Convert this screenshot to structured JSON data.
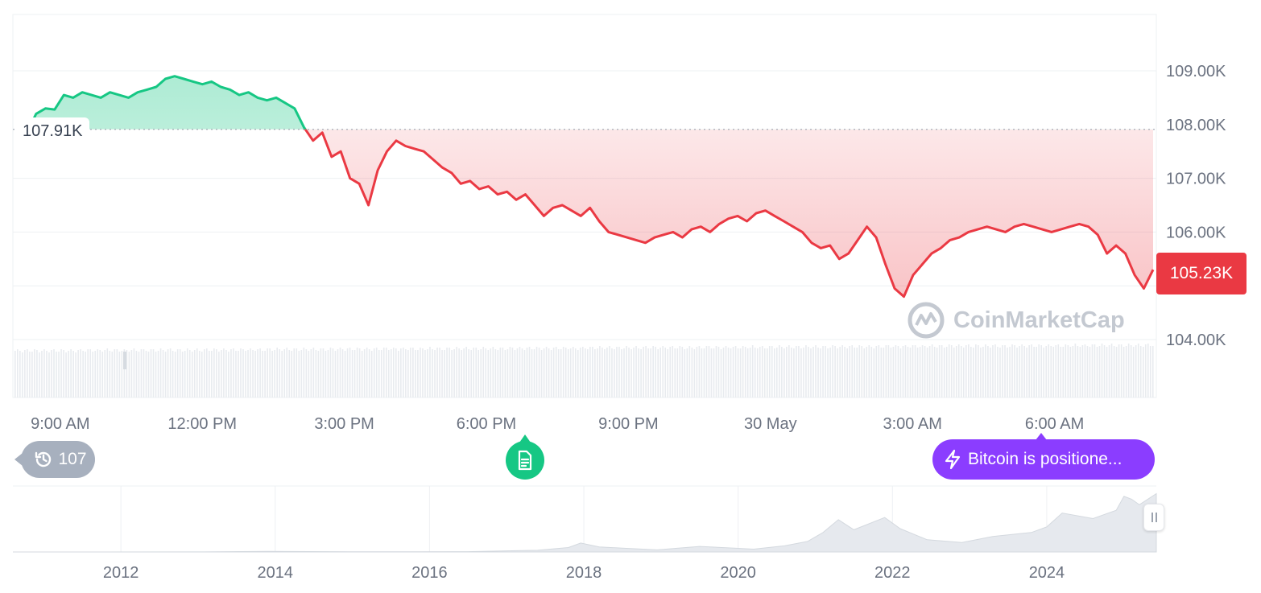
{
  "chart_data": {
    "type": "area",
    "baseline": 107.91,
    "baseline_label": "107.91K",
    "current_value": 105.23,
    "current_label": "105.23K",
    "y_ticks": [
      "104.00K",
      "105.00K",
      "106.00K",
      "107.00K",
      "108.00K",
      "109.00K"
    ],
    "y_tick_values": [
      104,
      105,
      106,
      107,
      108,
      109
    ],
    "x_ticks": [
      "9:00 AM",
      "12:00 PM",
      "3:00 PM",
      "6:00 PM",
      "9:00 PM",
      "30 May",
      "3:00 AM",
      "6:00 AM"
    ],
    "x_tick_hours": [
      1,
      4,
      7,
      10,
      13,
      16,
      19,
      22
    ],
    "x_start_hours": 0.0,
    "x_end_hours": 24.15,
    "ylim": [
      103.5,
      109.7
    ],
    "values": [
      107.9,
      107.85,
      108.2,
      108.3,
      108.28,
      108.55,
      108.5,
      108.6,
      108.55,
      108.5,
      108.6,
      108.55,
      108.5,
      108.6,
      108.65,
      108.7,
      108.85,
      108.9,
      108.85,
      108.8,
      108.75,
      108.8,
      108.7,
      108.65,
      108.55,
      108.6,
      108.5,
      108.45,
      108.5,
      108.4,
      108.3,
      107.95,
      107.7,
      107.85,
      107.4,
      107.5,
      107.0,
      106.9,
      106.5,
      107.15,
      107.5,
      107.7,
      107.6,
      107.55,
      107.5,
      107.35,
      107.2,
      107.1,
      106.9,
      106.95,
      106.8,
      106.85,
      106.7,
      106.75,
      106.6,
      106.7,
      106.5,
      106.3,
      106.45,
      106.5,
      106.4,
      106.3,
      106.45,
      106.2,
      106.0,
      105.95,
      105.9,
      105.85,
      105.8,
      105.9,
      105.95,
      106.0,
      105.9,
      106.05,
      106.1,
      106.0,
      106.15,
      106.25,
      106.3,
      106.2,
      106.35,
      106.4,
      106.3,
      106.2,
      106.1,
      106.0,
      105.8,
      105.7,
      105.75,
      105.5,
      105.6,
      105.85,
      106.1,
      105.9,
      105.4,
      104.95,
      104.8,
      105.2,
      105.4,
      105.6,
      105.7,
      105.85,
      105.9,
      106.0,
      106.05,
      106.1,
      106.05,
      106.0,
      106.1,
      106.15,
      106.1,
      106.05,
      106.0,
      106.05,
      106.1,
      106.15,
      106.1,
      105.95,
      105.6,
      105.75,
      105.6,
      105.2,
      104.95,
      105.3
    ],
    "up_color": "#16c784",
    "down_color": "#ea3943",
    "navigator": {
      "x_ticks": [
        "2012",
        "2014",
        "2016",
        "2018",
        "2020",
        "2022",
        "2024"
      ],
      "x_tick_years": [
        2012,
        2014,
        2016,
        2018,
        2020,
        2022,
        2024
      ],
      "x_start_year": 2010.6,
      "x_end_year": 2025.42,
      "ylim": [
        0,
        110
      ],
      "points": [
        [
          2010.6,
          0
        ],
        [
          2013.0,
          0.1
        ],
        [
          2013.9,
          1.0
        ],
        [
          2015.0,
          0.3
        ],
        [
          2016.5,
          0.6
        ],
        [
          2017.4,
          3
        ],
        [
          2017.8,
          8
        ],
        [
          2017.96,
          16
        ],
        [
          2018.2,
          9
        ],
        [
          2018.5,
          7
        ],
        [
          2018.95,
          3.8
        ],
        [
          2019.5,
          10
        ],
        [
          2019.95,
          7
        ],
        [
          2020.2,
          5
        ],
        [
          2020.6,
          11
        ],
        [
          2020.9,
          19
        ],
        [
          2021.1,
          35
        ],
        [
          2021.3,
          58
        ],
        [
          2021.5,
          40
        ],
        [
          2021.9,
          62
        ],
        [
          2022.1,
          42
        ],
        [
          2022.45,
          22
        ],
        [
          2022.9,
          17
        ],
        [
          2023.3,
          28
        ],
        [
          2023.8,
          35
        ],
        [
          2024.0,
          45
        ],
        [
          2024.2,
          70
        ],
        [
          2024.6,
          60
        ],
        [
          2024.9,
          75
        ],
        [
          2025.0,
          100
        ],
        [
          2025.1,
          95
        ],
        [
          2025.2,
          85
        ],
        [
          2025.3,
          94
        ],
        [
          2025.42,
          105
        ]
      ]
    }
  },
  "badges": {
    "history_count": "107",
    "insight_text": "Bitcoin is positione..."
  },
  "watermark_text": "CoinMarketCap"
}
